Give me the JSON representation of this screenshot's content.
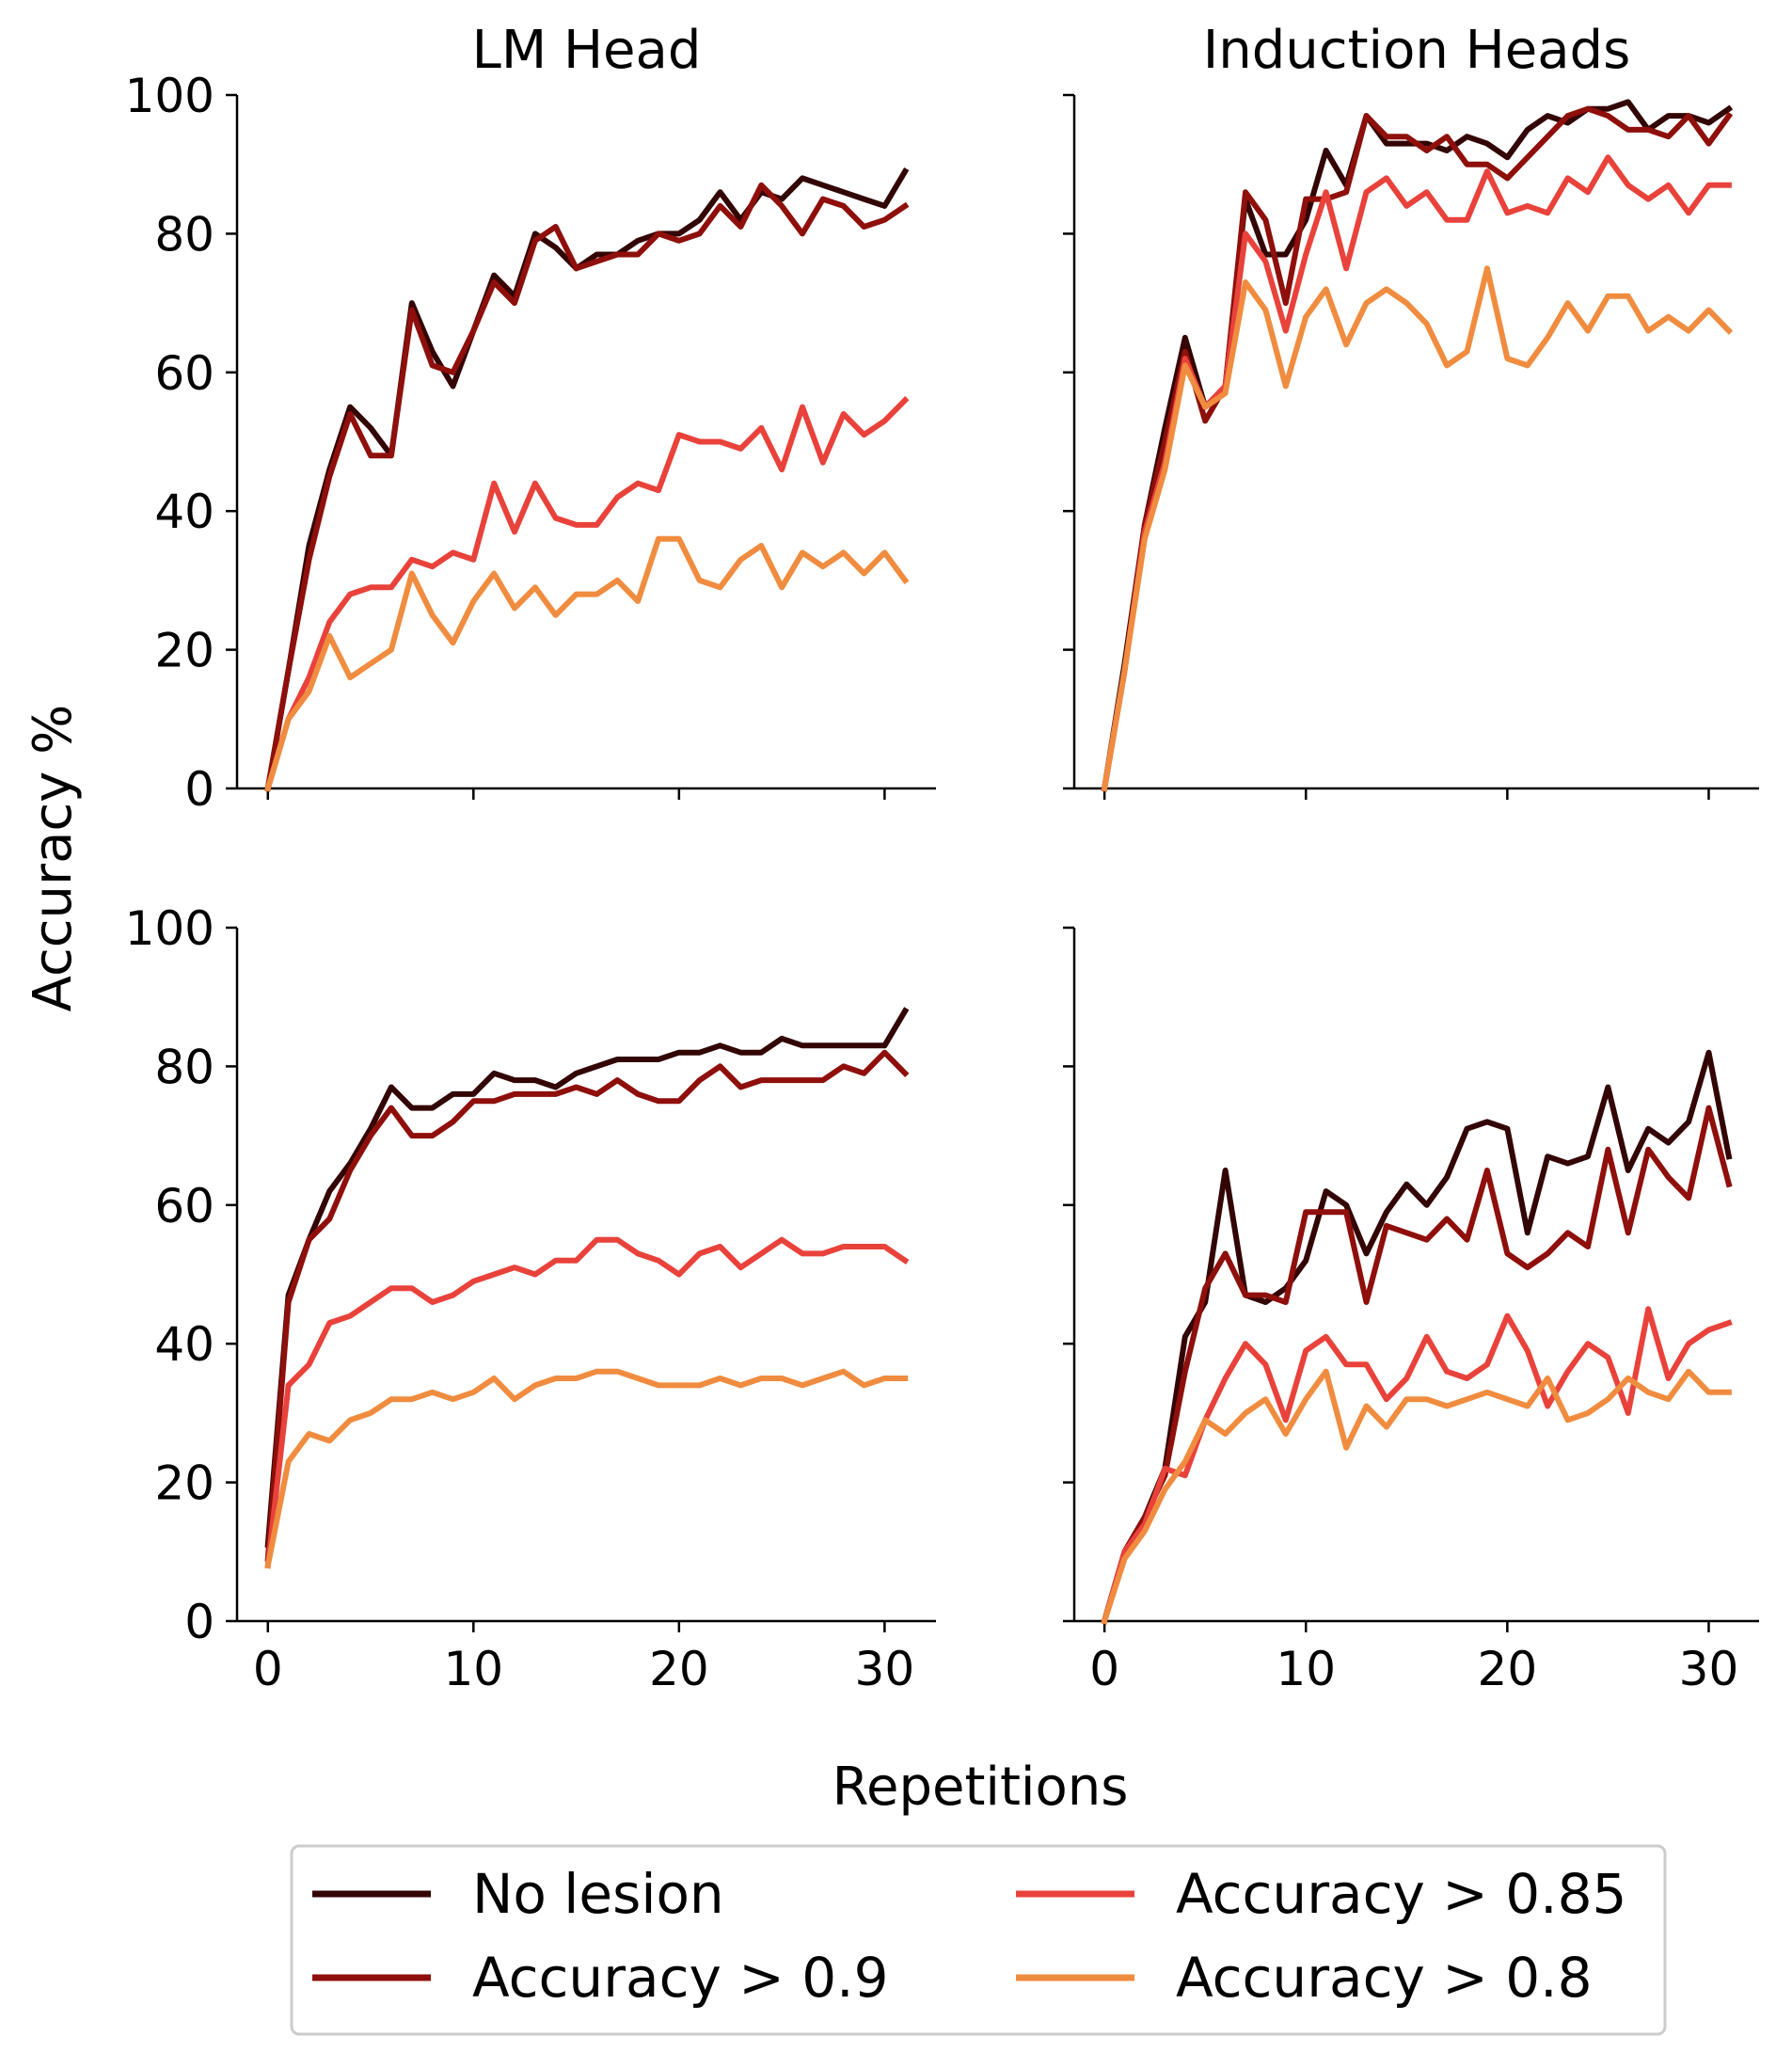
{
  "figure": {
    "ylabel": "Accuracy %",
    "xlabel": "Repetitions"
  },
  "legend": {
    "placement": "bottom-center",
    "items": [
      {
        "label": "No lesion",
        "color": "#330505"
      },
      {
        "label": "Accuracy > 0.9",
        "color": "#8e0f0b"
      },
      {
        "label": "Accuracy > 0.85",
        "color": "#e8423b"
      },
      {
        "label": "Accuracy > 0.8",
        "color": "#f08c3f"
      }
    ]
  },
  "chart_data": [
    {
      "type": "line",
      "title": "LM Head",
      "xlabel": "",
      "ylabel": "",
      "xlim": [
        -1.5,
        32.5
      ],
      "ylim": [
        0,
        100
      ],
      "xticks": [
        0,
        10,
        20,
        30
      ],
      "yticks": [
        0,
        20,
        40,
        60,
        80,
        100
      ],
      "show_xticklabels": false,
      "show_yticklabels": true,
      "grid": false,
      "x": [
        0,
        1,
        2,
        3,
        4,
        5,
        6,
        7,
        8,
        9,
        10,
        11,
        12,
        13,
        14,
        15,
        16,
        17,
        18,
        19,
        20,
        21,
        22,
        23,
        24,
        25,
        26,
        27,
        28,
        29,
        30,
        31
      ],
      "series": [
        {
          "name": "No lesion",
          "color": "#330505",
          "values": [
            0,
            17,
            35,
            46,
            55,
            52,
            48,
            70,
            63,
            58,
            66,
            74,
            71,
            80,
            78,
            75,
            77,
            77,
            79,
            80,
            80,
            82,
            86,
            82,
            86,
            85,
            88,
            87,
            86,
            85,
            84,
            89
          ]
        },
        {
          "name": "Accuracy > 0.9",
          "color": "#8e0f0b",
          "values": [
            0,
            17,
            33,
            45,
            54,
            48,
            48,
            69,
            61,
            60,
            66,
            73,
            70,
            79,
            81,
            75,
            76,
            77,
            77,
            80,
            79,
            80,
            84,
            81,
            87,
            84,
            80,
            85,
            84,
            81,
            82,
            84
          ]
        },
        {
          "name": "Accuracy > 0.85",
          "color": "#e8423b",
          "values": [
            0,
            10,
            16,
            24,
            28,
            29,
            29,
            33,
            32,
            34,
            33,
            44,
            37,
            44,
            39,
            38,
            38,
            42,
            44,
            43,
            51,
            50,
            50,
            49,
            52,
            46,
            55,
            47,
            54,
            51,
            53,
            56
          ]
        },
        {
          "name": "Accuracy > 0.8",
          "color": "#f08c3f",
          "values": [
            0,
            10,
            14,
            22,
            16,
            18,
            20,
            31,
            25,
            21,
            27,
            31,
            26,
            29,
            25,
            28,
            28,
            30,
            27,
            36,
            36,
            30,
            29,
            33,
            35,
            29,
            34,
            32,
            34,
            31,
            34,
            30
          ]
        }
      ]
    },
    {
      "type": "line",
      "title": "Induction Heads",
      "xlabel": "",
      "ylabel": "",
      "xlim": [
        -1.5,
        32.5
      ],
      "ylim": [
        0,
        100
      ],
      "xticks": [
        0,
        10,
        20,
        30
      ],
      "yticks": [
        0,
        20,
        40,
        60,
        80,
        100
      ],
      "show_xticklabels": false,
      "show_yticklabels": false,
      "grid": false,
      "x": [
        0,
        1,
        2,
        3,
        4,
        5,
        6,
        7,
        8,
        9,
        10,
        11,
        12,
        13,
        14,
        15,
        16,
        17,
        18,
        19,
        20,
        21,
        22,
        23,
        24,
        25,
        26,
        27,
        28,
        29,
        30,
        31
      ],
      "series": [
        {
          "name": "No lesion",
          "color": "#330505",
          "values": [
            0,
            18,
            38,
            52,
            65,
            55,
            58,
            85,
            77,
            77,
            82,
            92,
            87,
            97,
            93,
            93,
            93,
            92,
            94,
            93,
            91,
            95,
            97,
            96,
            98,
            98,
            99,
            95,
            97,
            97,
            96,
            98
          ]
        },
        {
          "name": "Accuracy > 0.9",
          "color": "#8e0f0b",
          "values": [
            0,
            17,
            38,
            50,
            63,
            53,
            58,
            86,
            82,
            70,
            85,
            85,
            86,
            97,
            94,
            94,
            92,
            94,
            90,
            90,
            88,
            91,
            94,
            97,
            98,
            97,
            95,
            95,
            94,
            97,
            93,
            97
          ]
        },
        {
          "name": "Accuracy > 0.85",
          "color": "#e8423b",
          "values": [
            0,
            17,
            37,
            47,
            62,
            55,
            58,
            80,
            76,
            66,
            77,
            86,
            75,
            86,
            88,
            84,
            86,
            82,
            82,
            89,
            83,
            84,
            83,
            88,
            86,
            91,
            87,
            85,
            87,
            83,
            87,
            87
          ]
        },
        {
          "name": "Accuracy > 0.8",
          "color": "#f08c3f",
          "values": [
            0,
            17,
            36,
            46,
            61,
            55,
            57,
            73,
            69,
            58,
            68,
            72,
            64,
            70,
            72,
            70,
            67,
            61,
            63,
            75,
            62,
            61,
            65,
            70,
            66,
            71,
            71,
            66,
            68,
            66,
            69,
            66
          ]
        }
      ]
    },
    {
      "type": "line",
      "title": "",
      "xlabel": "",
      "ylabel": "",
      "xlim": [
        -1.5,
        32.5
      ],
      "ylim": [
        0,
        100
      ],
      "xticks": [
        0,
        10,
        20,
        30
      ],
      "yticks": [
        0,
        20,
        40,
        60,
        80,
        100
      ],
      "show_xticklabels": true,
      "show_yticklabels": true,
      "grid": false,
      "x": [
        0,
        1,
        2,
        3,
        4,
        5,
        6,
        7,
        8,
        9,
        10,
        11,
        12,
        13,
        14,
        15,
        16,
        17,
        18,
        19,
        20,
        21,
        22,
        23,
        24,
        25,
        26,
        27,
        28,
        29,
        30,
        31
      ],
      "series": [
        {
          "name": "No lesion",
          "color": "#330505",
          "values": [
            11,
            47,
            55,
            62,
            66,
            71,
            77,
            74,
            74,
            76,
            76,
            79,
            78,
            78,
            77,
            79,
            80,
            81,
            81,
            81,
            82,
            82,
            83,
            82,
            82,
            84,
            83,
            83,
            83,
            83,
            83,
            88
          ]
        },
        {
          "name": "Accuracy > 0.9",
          "color": "#8e0f0b",
          "values": [
            9,
            46,
            55,
            58,
            65,
            70,
            74,
            70,
            70,
            72,
            75,
            75,
            76,
            76,
            76,
            77,
            76,
            78,
            76,
            75,
            75,
            78,
            80,
            77,
            78,
            78,
            78,
            78,
            80,
            79,
            82,
            79
          ]
        },
        {
          "name": "Accuracy > 0.85",
          "color": "#e8423b",
          "values": [
            8,
            34,
            37,
            43,
            44,
            46,
            48,
            48,
            46,
            47,
            49,
            50,
            51,
            50,
            52,
            52,
            55,
            55,
            53,
            52,
            50,
            53,
            54,
            51,
            53,
            55,
            53,
            53,
            54,
            54,
            54,
            52
          ]
        },
        {
          "name": "Accuracy > 0.8",
          "color": "#f08c3f",
          "values": [
            8,
            23,
            27,
            26,
            29,
            30,
            32,
            32,
            33,
            32,
            33,
            35,
            32,
            34,
            35,
            35,
            36,
            36,
            35,
            34,
            34,
            34,
            35,
            34,
            35,
            35,
            34,
            35,
            36,
            34,
            35,
            35
          ]
        }
      ]
    },
    {
      "type": "line",
      "title": "",
      "xlabel": "",
      "ylabel": "",
      "xlim": [
        -1.5,
        32.5
      ],
      "ylim": [
        0,
        100
      ],
      "xticks": [
        0,
        10,
        20,
        30
      ],
      "yticks": [
        0,
        20,
        40,
        60,
        80,
        100
      ],
      "show_xticklabels": true,
      "show_yticklabels": false,
      "grid": false,
      "x": [
        0,
        1,
        2,
        3,
        4,
        5,
        6,
        7,
        8,
        9,
        10,
        11,
        12,
        13,
        14,
        15,
        16,
        17,
        18,
        19,
        20,
        21,
        22,
        23,
        24,
        25,
        26,
        27,
        28,
        29,
        30,
        31
      ],
      "series": [
        {
          "name": "No lesion",
          "color": "#330505",
          "values": [
            0,
            10,
            15,
            22,
            41,
            46,
            65,
            47,
            46,
            48,
            52,
            62,
            60,
            53,
            59,
            63,
            60,
            64,
            71,
            72,
            71,
            56,
            67,
            66,
            67,
            77,
            65,
            71,
            69,
            72,
            82,
            67
          ]
        },
        {
          "name": "Accuracy > 0.9",
          "color": "#8e0f0b",
          "values": [
            0,
            10,
            15,
            21,
            36,
            48,
            53,
            47,
            47,
            46,
            59,
            59,
            59,
            46,
            57,
            56,
            55,
            58,
            55,
            65,
            53,
            51,
            53,
            56,
            54,
            68,
            56,
            68,
            64,
            61,
            74,
            63
          ]
        },
        {
          "name": "Accuracy > 0.85",
          "color": "#e8423b",
          "values": [
            0,
            10,
            14,
            22,
            21,
            29,
            35,
            40,
            37,
            29,
            39,
            41,
            37,
            37,
            32,
            35,
            41,
            36,
            35,
            37,
            44,
            39,
            31,
            36,
            40,
            38,
            30,
            45,
            35,
            40,
            42,
            43
          ]
        },
        {
          "name": "Accuracy > 0.8",
          "color": "#f08c3f",
          "values": [
            0,
            9,
            13,
            19,
            23,
            29,
            27,
            30,
            32,
            27,
            32,
            36,
            25,
            31,
            28,
            32,
            32,
            31,
            32,
            33,
            32,
            31,
            35,
            29,
            30,
            32,
            35,
            33,
            32,
            36,
            33,
            33
          ]
        }
      ]
    }
  ]
}
